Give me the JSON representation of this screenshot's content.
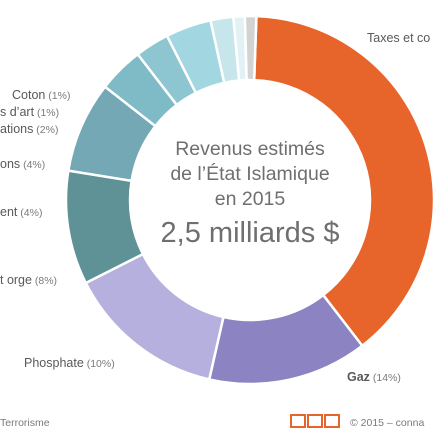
{
  "chart_data": {
    "type": "pie",
    "variant": "donut",
    "title_lines": [
      "Revenus estimés",
      "de l’État Islamique",
      "en 2015"
    ],
    "total": "2,5 milliards $",
    "slices": [
      {
        "label": "Taxes et co",
        "percent": null,
        "percent_label": "",
        "color": "#e7642a"
      },
      {
        "label": "Gaz",
        "percent": 14,
        "percent_label": "(14%)",
        "color": "#8c83c2"
      },
      {
        "label": "",
        "percent": 14,
        "percent_label": "",
        "color": "#b6b0de"
      },
      {
        "label": "Phosphate",
        "percent": 10,
        "percent_label": "(10%)",
        "color": "#5f9296"
      },
      {
        "label": "t orge",
        "percent": 8,
        "percent_label": "(8%)",
        "color": "#73a8b4"
      },
      {
        "label": "ent",
        "percent": 4,
        "percent_label": "(4%)",
        "color": "#7fbac7"
      },
      {
        "label": "",
        "percent": 3,
        "percent_label": "",
        "color": "#8dc5d1"
      },
      {
        "label": "ons",
        "percent": 4,
        "percent_label": "(4%)",
        "color": "#a2d6e1"
      },
      {
        "label": "ations",
        "percent": 2,
        "percent_label": "(2%)",
        "color": "#c6e6ec"
      },
      {
        "label": "s d’art",
        "percent": 1,
        "percent_label": "(1%)",
        "color": "#e2f1f4"
      },
      {
        "label": "Coton",
        "percent": 1,
        "percent_label": "(1%)",
        "color": "#d3d3d3"
      }
    ]
  },
  "footer": {
    "left": "Terrorisme",
    "right": "© 2015 – conna"
  }
}
